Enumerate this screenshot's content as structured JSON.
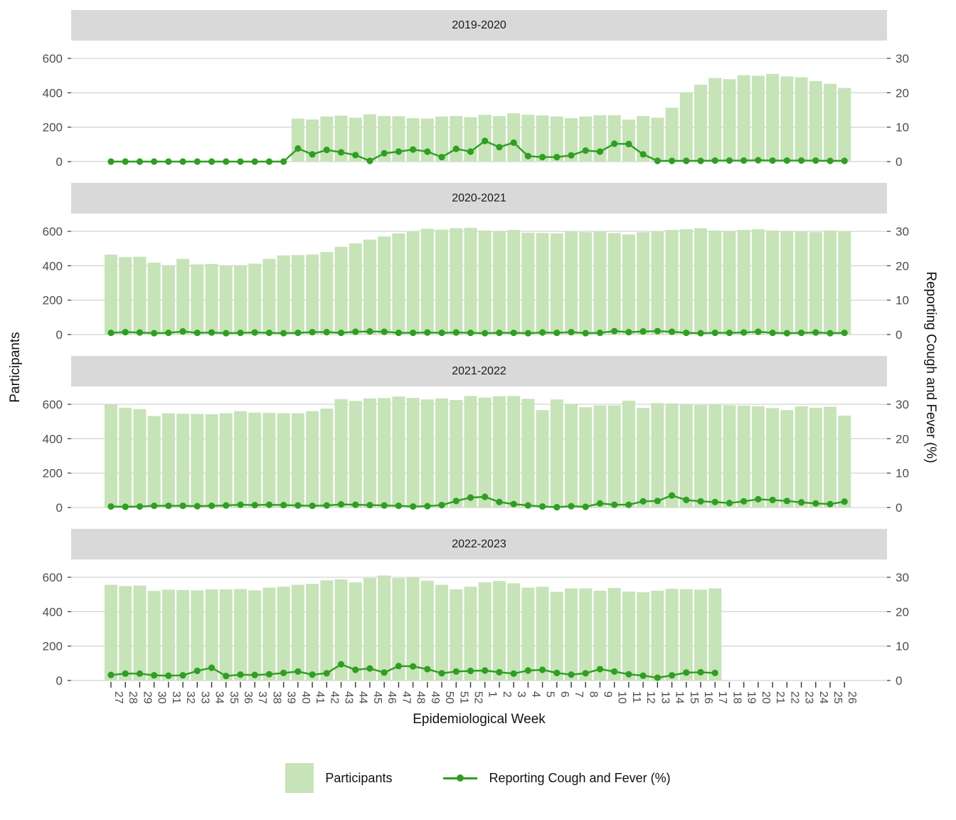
{
  "figure": {
    "y_axis_title": "Participants",
    "y2_axis_title": "Reporting Cough and Fever (%)",
    "x_axis_title": "Epidemiological Week",
    "colors": {
      "bar": "#c7e3b8",
      "line": "#2f9e23",
      "strip_bg": "#d9d9d9",
      "grid": "#d4d4d4",
      "axis_text": "#4d4d4d",
      "tick": "#333333"
    }
  },
  "legend": {
    "participants_label": "Participants",
    "line_label": "Reporting Cough and Fever (%)"
  },
  "chart_data": {
    "type": "bar",
    "subtype": "faceted bar + line, dual y-axis",
    "facet_titles": [
      "2019-2020",
      "2020-2021",
      "2021-2022",
      "2022-2023"
    ],
    "xlabel": "Epidemiological Week",
    "ylabel_left": "Participants",
    "ylabel_right": "Reporting Cough and Fever (%)",
    "left_ticks": [
      600,
      400,
      200,
      0
    ],
    "right_ticks": [
      30,
      20,
      10,
      0
    ],
    "left_lim": [
      0,
      650
    ],
    "right_lim": [
      0,
      32.5
    ],
    "grid": "major horizontal only",
    "legend_position": "bottom",
    "categories": [
      "27",
      "28",
      "29",
      "30",
      "31",
      "32",
      "33",
      "34",
      "35",
      "36",
      "37",
      "38",
      "39",
      "40",
      "41",
      "42",
      "43",
      "44",
      "45",
      "46",
      "47",
      "48",
      "49",
      "50",
      "51",
      "52",
      "1",
      "2",
      "3",
      "4",
      "5",
      "6",
      "7",
      "8",
      "9",
      "10",
      "11",
      "12",
      "13",
      "14",
      "15",
      "16",
      "17",
      "18",
      "19",
      "20",
      "21",
      "22",
      "23",
      "24",
      "25",
      "26"
    ],
    "facets": [
      {
        "title": "2019-2020",
        "participants": [
          0,
          0,
          0,
          0,
          0,
          0,
          0,
          0,
          0,
          0,
          0,
          0,
          0,
          250,
          245,
          262,
          267,
          255,
          275,
          265,
          264,
          252,
          250,
          262,
          265,
          258,
          272,
          265,
          281,
          272,
          268,
          262,
          252,
          262,
          269,
          269,
          244,
          265,
          255,
          313,
          400,
          447,
          486,
          479,
          502,
          499,
          510,
          495,
          490,
          468,
          452,
          428
        ],
        "pct": [
          0,
          0,
          0,
          0,
          0,
          0,
          0,
          0,
          0,
          0,
          0,
          0,
          0,
          3.8,
          2.1,
          3.4,
          2.7,
          1.9,
          0.2,
          2.4,
          2.9,
          3.5,
          2.9,
          1.3,
          3.7,
          2.9,
          6.0,
          4.2,
          5.5,
          1.6,
          1.3,
          1.3,
          1.8,
          3.2,
          2.9,
          5.2,
          5.1,
          2.1,
          0.2,
          0.2,
          0.2,
          0.2,
          0.3,
          0.3,
          0.3,
          0.4,
          0.3,
          0.3,
          0.3,
          0.3,
          0.2,
          0.2
        ]
      },
      {
        "title": "2020-2021",
        "participants": [
          465,
          450,
          452,
          418,
          402,
          440,
          408,
          410,
          398,
          402,
          412,
          440,
          460,
          462,
          465,
          480,
          510,
          530,
          552,
          570,
          588,
          600,
          615,
          610,
          618,
          620,
          605,
          598,
          608,
          592,
          590,
          588,
          600,
          595,
          598,
          590,
          582,
          595,
          600,
          608,
          612,
          618,
          605,
          598,
          608,
          612,
          605,
          598,
          600,
          595,
          605,
          600
        ],
        "pct": [
          0.5,
          0.7,
          0.6,
          0.4,
          0.5,
          0.9,
          0.5,
          0.6,
          0.4,
          0.5,
          0.6,
          0.5,
          0.4,
          0.5,
          0.7,
          0.7,
          0.5,
          0.8,
          0.9,
          0.8,
          0.5,
          0.5,
          0.6,
          0.5,
          0.6,
          0.5,
          0.4,
          0.5,
          0.5,
          0.4,
          0.6,
          0.5,
          0.7,
          0.4,
          0.5,
          1.0,
          0.7,
          0.9,
          1.0,
          0.8,
          0.5,
          0.4,
          0.5,
          0.5,
          0.6,
          0.8,
          0.5,
          0.4,
          0.5,
          0.6,
          0.4,
          0.5
        ]
      },
      {
        "title": "2021-2022",
        "participants": [
          598,
          580,
          572,
          532,
          548,
          545,
          544,
          542,
          548,
          560,
          552,
          550,
          548,
          548,
          560,
          575,
          630,
          620,
          634,
          636,
          645,
          637,
          628,
          634,
          625,
          648,
          639,
          647,
          648,
          632,
          566,
          628,
          603,
          583,
          593,
          593,
          621,
          579,
          607,
          605,
          598,
          596,
          600,
          594,
          592,
          588,
          578,
          566,
          588,
          580,
          586,
          534
        ],
        "pct": [
          0.3,
          0.2,
          0.3,
          0.5,
          0.5,
          0.5,
          0.4,
          0.5,
          0.6,
          0.8,
          0.7,
          0.8,
          0.7,
          0.6,
          0.5,
          0.6,
          0.9,
          0.8,
          0.7,
          0.6,
          0.5,
          0.3,
          0.4,
          0.7,
          1.9,
          2.9,
          3.1,
          1.6,
          1.0,
          0.6,
          0.3,
          0.1,
          0.4,
          0.2,
          1.2,
          0.8,
          0.8,
          1.8,
          1.9,
          3.5,
          2.2,
          1.8,
          1.6,
          1.3,
          1.8,
          2.4,
          2.2,
          1.9,
          1.5,
          1.2,
          1.0,
          1.7
        ]
      },
      {
        "title": "2022-2023",
        "participants": [
          556,
          549,
          552,
          521,
          528,
          526,
          524,
          530,
          530,
          532,
          524,
          540,
          545,
          556,
          562,
          582,
          588,
          570,
          595,
          610,
          595,
          600,
          580,
          556,
          530,
          545,
          570,
          578,
          565,
          540,
          545,
          515,
          535,
          535,
          522,
          538,
          517,
          513,
          522,
          533,
          531,
          528,
          535,
          null,
          null,
          null,
          null,
          null,
          null,
          null,
          null,
          null
        ],
        "pct": [
          1.6,
          2.0,
          2.0,
          1.5,
          1.4,
          1.5,
          2.8,
          3.7,
          1.3,
          1.7,
          1.6,
          1.8,
          2.2,
          2.6,
          1.7,
          2.1,
          4.7,
          3.1,
          3.5,
          2.3,
          4.2,
          4.1,
          3.3,
          2.1,
          2.6,
          2.8,
          2.9,
          2.4,
          2.0,
          2.9,
          3.1,
          2.2,
          1.7,
          2.1,
          3.3,
          2.6,
          1.8,
          1.4,
          0.8,
          1.5,
          2.3,
          2.4,
          2.2,
          null,
          null,
          null,
          null,
          null,
          null,
          null,
          null,
          null
        ]
      }
    ]
  }
}
